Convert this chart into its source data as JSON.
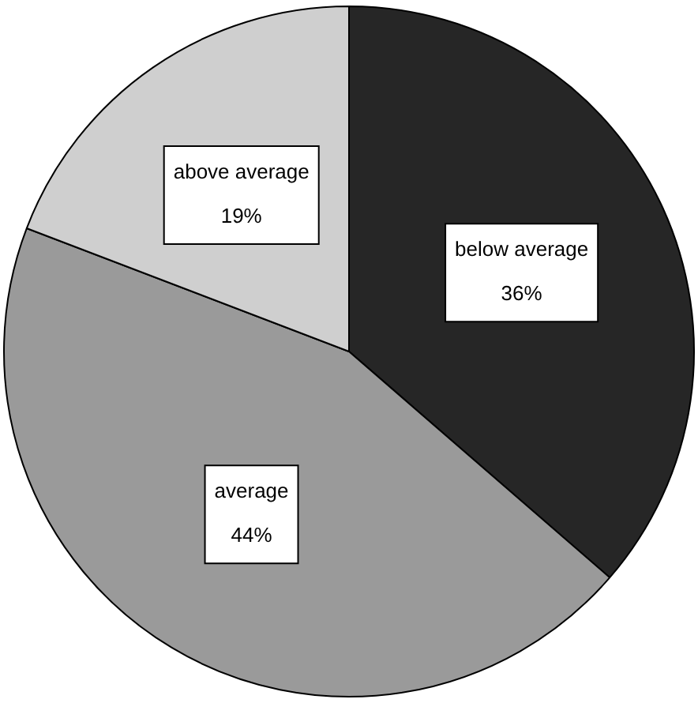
{
  "chart_data": {
    "type": "pie",
    "categories": [
      "below average",
      "average",
      "above average"
    ],
    "values": [
      36,
      44,
      19
    ],
    "value_labels": [
      "36%",
      "44%",
      "19%"
    ],
    "colors": [
      "#262626",
      "#9a9a9a",
      "#cfcfcf"
    ],
    "legend": false
  }
}
